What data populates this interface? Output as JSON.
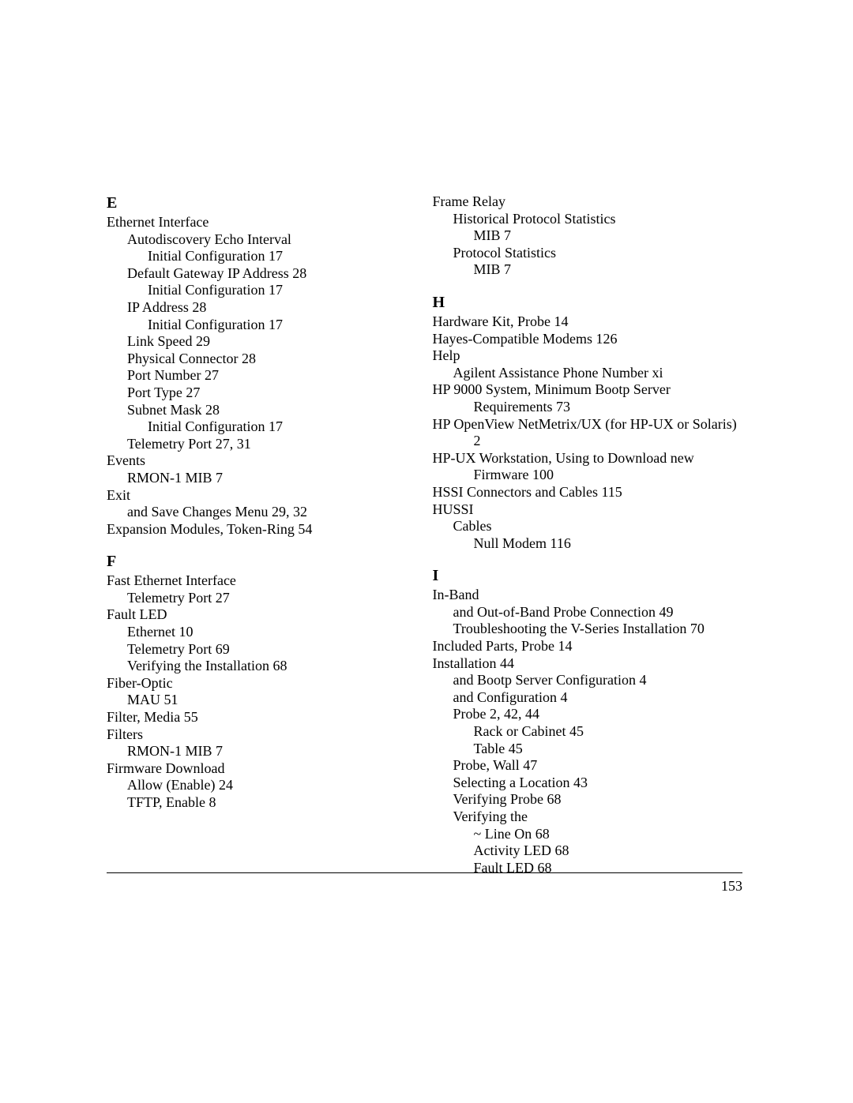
{
  "page_number": "153",
  "left_column": {
    "sections": [
      {
        "letter": "E",
        "entries": [
          {
            "indent": 0,
            "text": "Ethernet Interface"
          },
          {
            "indent": 1,
            "text": "Autodiscovery Echo Interval"
          },
          {
            "indent": 2,
            "text": "Initial Configuration 17"
          },
          {
            "indent": 1,
            "text": "Default Gateway IP Address 28"
          },
          {
            "indent": 2,
            "text": "Initial Configuration 17"
          },
          {
            "indent": 1,
            "text": "IP Address 28"
          },
          {
            "indent": 2,
            "text": "Initial Configuration 17"
          },
          {
            "indent": 1,
            "text": "Link Speed 29"
          },
          {
            "indent": 1,
            "text": "Physical Connector 28"
          },
          {
            "indent": 1,
            "text": "Port Number 27"
          },
          {
            "indent": 1,
            "text": "Port Type 27"
          },
          {
            "indent": 1,
            "text": "Subnet Mask 28"
          },
          {
            "indent": 2,
            "text": "Initial Configuration 17"
          },
          {
            "indent": 1,
            "text": "Telemetry Port 27, 31"
          },
          {
            "indent": 0,
            "text": "Events"
          },
          {
            "indent": 1,
            "text": "RMON-1 MIB 7"
          },
          {
            "indent": 0,
            "text": "Exit"
          },
          {
            "indent": 1,
            "text": "and Save Changes Menu 29, 32"
          },
          {
            "indent": 0,
            "text": "Expansion Modules, Token-Ring 54"
          }
        ]
      },
      {
        "letter": "F",
        "entries": [
          {
            "indent": 0,
            "text": "Fast Ethernet Interface"
          },
          {
            "indent": 1,
            "text": "Telemetry Port 27"
          },
          {
            "indent": 0,
            "text": "Fault LED"
          },
          {
            "indent": 1,
            "text": "Ethernet 10"
          },
          {
            "indent": 1,
            "text": "Telemetry Port 69"
          },
          {
            "indent": 1,
            "text": "Verifying the Installation 68"
          },
          {
            "indent": 0,
            "text": "Fiber-Optic"
          },
          {
            "indent": 1,
            "text": "MAU 51"
          },
          {
            "indent": 0,
            "text": "Filter, Media 55"
          },
          {
            "indent": 0,
            "text": "Filters"
          },
          {
            "indent": 1,
            "text": "RMON-1 MIB 7"
          },
          {
            "indent": 0,
            "text": "Firmware Download"
          },
          {
            "indent": 1,
            "text": "Allow (Enable) 24"
          },
          {
            "indent": 1,
            "text": "TFTP, Enable 8"
          }
        ]
      }
    ]
  },
  "right_column": {
    "sections": [
      {
        "letter": "",
        "entries": [
          {
            "indent": 0,
            "text": "Frame Relay"
          },
          {
            "indent": 1,
            "text": "Historical Protocol Statistics"
          },
          {
            "indent": 2,
            "text": "MIB 7"
          },
          {
            "indent": 1,
            "text": "Protocol Statistics"
          },
          {
            "indent": 2,
            "text": "MIB 7"
          }
        ]
      },
      {
        "letter": "H",
        "entries": [
          {
            "indent": 0,
            "text": "Hardware Kit, Probe 14"
          },
          {
            "indent": 0,
            "text": "Hayes-Compatible Modems 126"
          },
          {
            "indent": 0,
            "text": "Help"
          },
          {
            "indent": 1,
            "text": "Agilent Assistance Phone Number xi"
          },
          {
            "indent": 0,
            "text": "HP 9000 System, Minimum Bootp Server"
          },
          {
            "indent": 2,
            "text": "Requirements 73"
          },
          {
            "indent": 0,
            "text": "HP OpenView NetMetrix/UX (for HP-UX or Solaris)"
          },
          {
            "indent": 2,
            "text": "2"
          },
          {
            "indent": 0,
            "text": "HP-UX Workstation, Using to Download new"
          },
          {
            "indent": 2,
            "text": "Firmware 100"
          },
          {
            "indent": 0,
            "text": "HSSI Connectors and Cables 115"
          },
          {
            "indent": 0,
            "text": "HUSSI"
          },
          {
            "indent": 1,
            "text": "Cables"
          },
          {
            "indent": 2,
            "text": "Null Modem 116"
          }
        ]
      },
      {
        "letter": "I",
        "entries": [
          {
            "indent": 0,
            "text": "In-Band"
          },
          {
            "indent": 1,
            "text": "and Out-of-Band Probe Connection 49"
          },
          {
            "indent": 1,
            "text": "Troubleshooting the V-Series Installation 70"
          },
          {
            "indent": 0,
            "text": "Included Parts, Probe 14"
          },
          {
            "indent": 0,
            "text": "Installation 44"
          },
          {
            "indent": 1,
            "text": "and Bootp Server Configuration 4"
          },
          {
            "indent": 1,
            "text": "and Configuration 4"
          },
          {
            "indent": 1,
            "text": "Probe 2, 42, 44"
          },
          {
            "indent": 2,
            "text": "Rack or Cabinet 45"
          },
          {
            "indent": 2,
            "text": "Table 45"
          },
          {
            "indent": 1,
            "text": "Probe, Wall 47"
          },
          {
            "indent": 1,
            "text": "Selecting a Location 43"
          },
          {
            "indent": 1,
            "text": "Verifying Probe 68"
          },
          {
            "indent": 1,
            "text": "Verifying the"
          },
          {
            "indent": 2,
            "text": "~ Line On 68"
          },
          {
            "indent": 2,
            "text": "Activity LED 68"
          },
          {
            "indent": 2,
            "text": "Fault LED 68"
          }
        ]
      }
    ]
  }
}
